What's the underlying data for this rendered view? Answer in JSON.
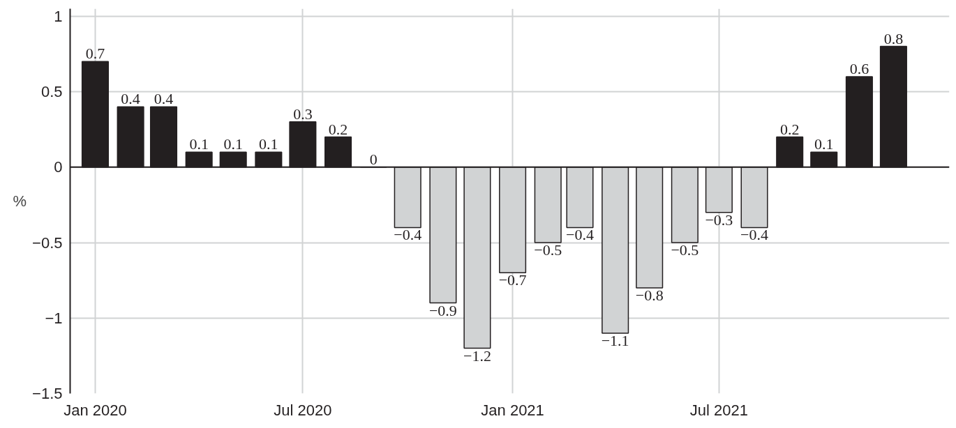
{
  "chart_data": {
    "type": "bar",
    "ylabel": "%",
    "x": [
      "2020-01",
      "2020-02",
      "2020-03",
      "2020-04",
      "2020-05",
      "2020-06",
      "2020-07",
      "2020-08",
      "2020-09",
      "2020-10",
      "2020-11",
      "2020-12",
      "2021-01",
      "2021-02",
      "2021-03",
      "2021-04",
      "2021-05",
      "2021-06",
      "2021-07",
      "2021-08",
      "2021-09",
      "2021-10",
      "2021-11",
      "2021-12"
    ],
    "values": [
      0.7,
      0.4,
      0.4,
      0.1,
      0.1,
      0.1,
      0.3,
      0.2,
      0,
      -0.4,
      -0.9,
      -1.2,
      -0.7,
      -0.5,
      -0.4,
      -1.1,
      -0.8,
      -0.5,
      -0.3,
      -0.4,
      0.2,
      0.1,
      0.6,
      0.8
    ],
    "value_labels": [
      "0.7",
      "0.4",
      "0.4",
      "0.1",
      "0.1",
      "0.1",
      "0.3",
      "0.2",
      "0",
      "−0.4",
      "−0.9",
      "−1.2",
      "−0.7",
      "−0.5",
      "−0.4",
      "−1.1",
      "−0.8",
      "−0.5",
      "−0.3",
      "−0.4",
      "0.2",
      "0.1",
      "0.6",
      "0.8"
    ],
    "colors": [
      "#231f20",
      "#231f20",
      "#231f20",
      "#231f20",
      "#231f20",
      "#231f20",
      "#231f20",
      "#231f20",
      "#231f20",
      "#d1d3d4",
      "#d1d3d4",
      "#d1d3d4",
      "#d1d3d4",
      "#d1d3d4",
      "#d1d3d4",
      "#d1d3d4",
      "#d1d3d4",
      "#d1d3d4",
      "#d1d3d4",
      "#d1d3d4",
      "#231f20",
      "#231f20",
      "#231f20",
      "#231f20"
    ],
    "xlim": [
      "2019-12-10",
      "2022-01-19"
    ],
    "xticks": [
      {
        "value": "2020-01",
        "label": "Jan 2020"
      },
      {
        "value": "2020-07",
        "label": "Jul 2020"
      },
      {
        "value": "2021-01",
        "label": "Jan 2021"
      },
      {
        "value": "2021-07",
        "label": "Jul 2021"
      }
    ],
    "ylim": [
      -1.5,
      1.05
    ],
    "yticks": [
      {
        "value": -1.5,
        "label": "−1.5"
      },
      {
        "value": -1,
        "label": "−1"
      },
      {
        "value": -0.5,
        "label": "−0.5"
      },
      0,
      0.5,
      1
    ],
    "grid": true
  }
}
